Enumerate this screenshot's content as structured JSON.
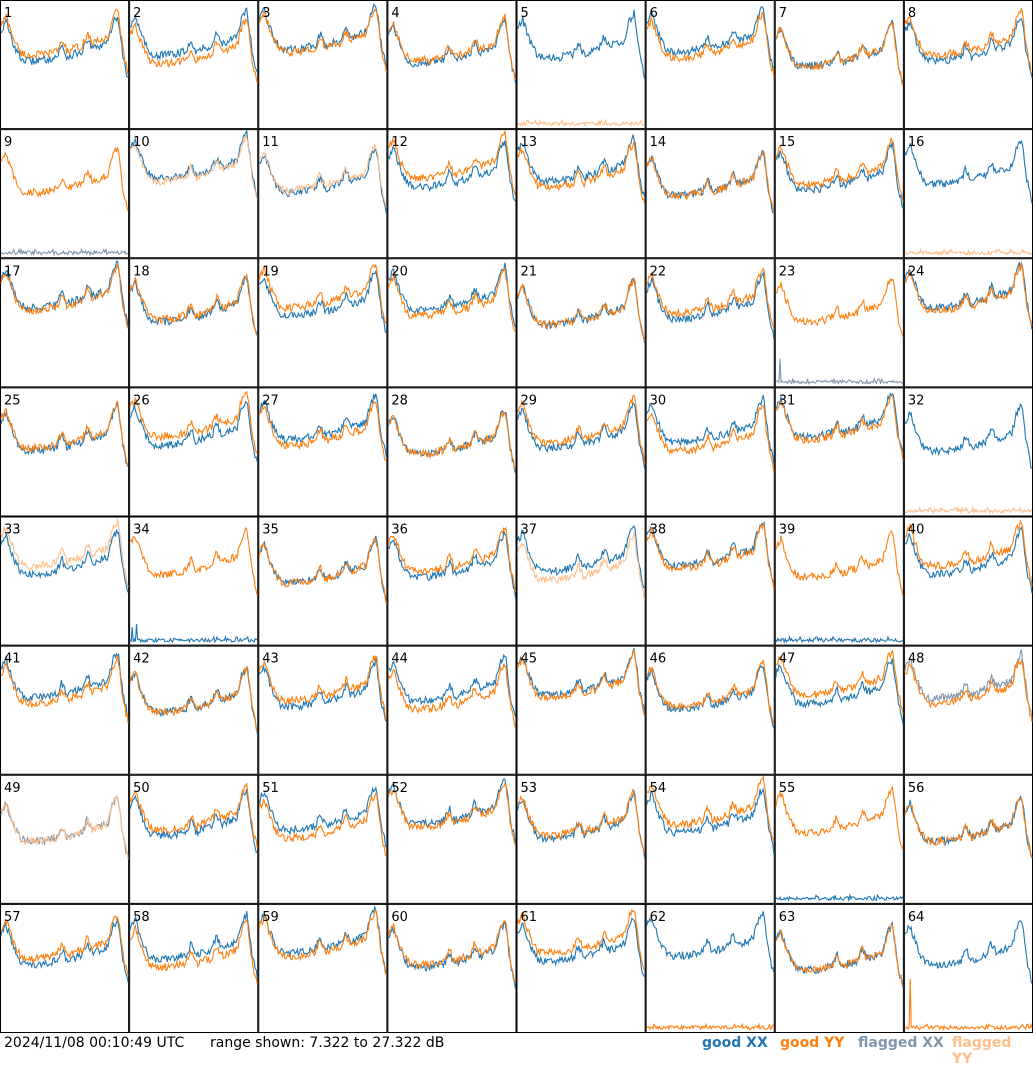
{
  "chart_data": {
    "type": "line",
    "grid": {
      "rows": 8,
      "cols": 8
    },
    "panel_labels": [
      "1",
      "2",
      "3",
      "4",
      "5",
      "6",
      "7",
      "8",
      "9",
      "10",
      "11",
      "12",
      "13",
      "14",
      "15",
      "16",
      "17",
      "18",
      "19",
      "20",
      "21",
      "22",
      "23",
      "24",
      "25",
      "26",
      "27",
      "28",
      "29",
      "30",
      "31",
      "32",
      "33",
      "34",
      "35",
      "36",
      "37",
      "38",
      "39",
      "40",
      "41",
      "42",
      "43",
      "44",
      "45",
      "46",
      "47",
      "48",
      "49",
      "50",
      "51",
      "52",
      "53",
      "54",
      "55",
      "56",
      "57",
      "58",
      "59",
      "60",
      "61",
      "62",
      "63",
      "64"
    ],
    "y_range_db": [
      7.322,
      27.322
    ],
    "series_styles": {
      "good_xx": "#1f77b4",
      "good_yy": "#ff7f0e",
      "flagged_xx": "#7f96ad",
      "flagged_yy": "#ffbf8a"
    },
    "typical_panel_profile_db": [
      23.0,
      24.5,
      22.0,
      20.0,
      18.7,
      18.4,
      18.3,
      18.5,
      18.4,
      18.6,
      18.8,
      19.0,
      20.8,
      18.9,
      19.3,
      19.6,
      19.8,
      21.8,
      20.2,
      20.5,
      20.8,
      21.2,
      24.3,
      25.5,
      19.0,
      15.5
    ],
    "notes_panels": {
      "flat_low_xx": [
        9,
        23,
        34,
        39,
        55
      ],
      "flat_low_yy": [
        5,
        16,
        32,
        62,
        64
      ],
      "flagged_xx_panels": [
        9,
        23,
        48,
        49
      ],
      "flagged_yy_panels": [
        5,
        10,
        11,
        16,
        32,
        33,
        37,
        49
      ]
    }
  },
  "footer": {
    "timestamp": "2024/11/08 00:10:49 UTC",
    "range_text": "range shown: 7.322 to 27.322 dB",
    "legend": [
      {
        "label": "good XX",
        "color": "#1f77b4"
      },
      {
        "label": "good YY",
        "color": "#ff7f0e"
      },
      {
        "label": "flagged XX",
        "color": "#7f96ad"
      },
      {
        "label": "flagged YY",
        "color": "#ffbf8a"
      }
    ]
  }
}
